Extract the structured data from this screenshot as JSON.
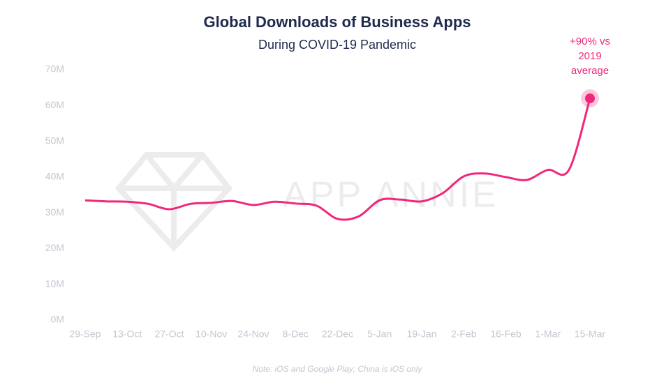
{
  "chart_data": {
    "type": "line",
    "title": "Global Downloads of Business Apps",
    "subtitle": "During COVID-19 Pandemic",
    "watermark": "APP ANNIE",
    "note": "Note: iOS and Google Play; China is iOS only",
    "annotation": [
      "+90% vs",
      "2019",
      "average"
    ],
    "categories": [
      "29-Sep",
      null,
      "13-Oct",
      null,
      "27-Oct",
      null,
      "10-Nov",
      null,
      "24-Nov",
      null,
      "8-Dec",
      null,
      "22-Dec",
      null,
      "5-Jan",
      null,
      "19-Jan",
      null,
      "2-Feb",
      null,
      "16-Feb",
      null,
      "1-Mar",
      null,
      "15-Mar"
    ],
    "series": [
      {
        "name": "Downloads",
        "color": "#f0287a",
        "values": [
          33.5,
          33.2,
          33.1,
          32.5,
          31,
          32.5,
          32.8,
          33.3,
          32.2,
          33.1,
          32.6,
          32,
          28.3,
          29,
          33.5,
          33.7,
          33.2,
          35.5,
          40.2,
          41,
          40,
          39.2,
          42,
          42,
          62
        ]
      }
    ],
    "ylim": [
      0,
      70
    ],
    "yticks": [
      {
        "value": 0,
        "label": "0M"
      },
      {
        "value": 10,
        "label": "10M"
      },
      {
        "value": 20,
        "label": "20M"
      },
      {
        "value": 30,
        "label": "30M"
      },
      {
        "value": 40,
        "label": "40M"
      },
      {
        "value": 50,
        "label": "50M"
      },
      {
        "value": 60,
        "label": "60M"
      },
      {
        "value": 70,
        "label": "70M"
      }
    ],
    "grid": false
  }
}
